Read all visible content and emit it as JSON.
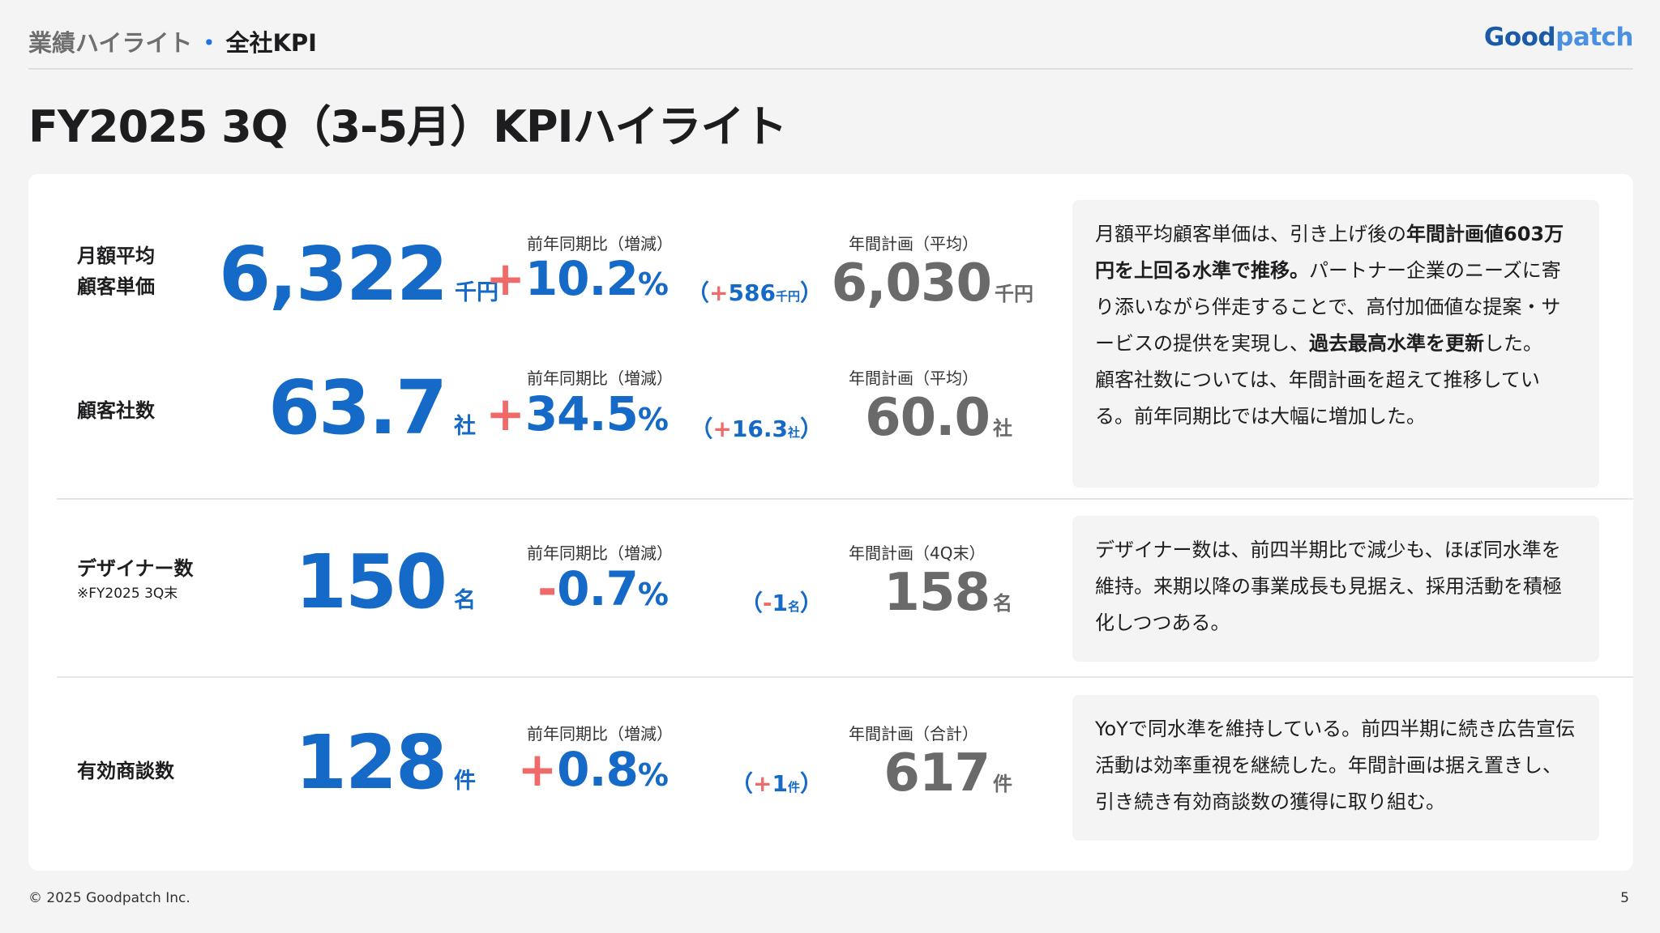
{
  "header": {
    "section": "業績ハイライト",
    "separator": "・",
    "current": "全社KPI",
    "logo_text_a": "Good",
    "logo_text_b": "patch"
  },
  "title": "FY2025 3Q（3-5月）KPIハイライト",
  "kpis": [
    {
      "label_line1": "月額平均",
      "label_line2": "顧客単価",
      "value": "6,322",
      "unit": "千円",
      "yoy_caption": "前年同期比（増減）",
      "yoy_sign": "+",
      "yoy_value": "10.2",
      "yoy_pct": "%",
      "diff_open": "（",
      "diff_sign": "+",
      "diff_value": "586",
      "diff_unit": "千円",
      "diff_close": "）",
      "plan_caption": "年間計画（平均）",
      "plan_value": "6,030",
      "plan_unit": "千円"
    },
    {
      "label_line1": "顧客社数",
      "value": "63.7",
      "unit": "社",
      "yoy_caption": "前年同期比（増減）",
      "yoy_sign": "+",
      "yoy_value": "34.5",
      "yoy_pct": "%",
      "diff_open": "（",
      "diff_sign": "+",
      "diff_value": "16.3",
      "diff_unit": "社",
      "diff_close": "）",
      "plan_caption": "年間計画（平均）",
      "plan_value": "60.0",
      "plan_unit": "社"
    },
    {
      "label_line1": "デザイナー数",
      "sublabel": "※FY2025 3Q末",
      "value": "150",
      "unit": "名",
      "yoy_caption": "前年同期比（増減）",
      "yoy_sign": "-",
      "yoy_value": "0.7",
      "yoy_pct": "%",
      "diff_open": "（",
      "diff_sign": "-",
      "diff_value": "1",
      "diff_unit": "名",
      "diff_close": "）",
      "plan_caption": "年間計画（4Q末）",
      "plan_value": "158",
      "plan_unit": "名"
    },
    {
      "label_line1": "有効商談数",
      "value": "128",
      "unit": "件",
      "yoy_caption": "前年同期比（増減）",
      "yoy_sign": "+",
      "yoy_value": "0.8",
      "yoy_pct": "%",
      "diff_open": "（",
      "diff_sign": "+",
      "diff_value": "1",
      "diff_unit": "件",
      "diff_close": "）",
      "plan_caption": "年間計画（合計）",
      "plan_value": "617",
      "plan_unit": "件"
    }
  ],
  "comments": {
    "c1_a": "月額平均顧客単価は、引き上げ後の",
    "c1_b": "年間計画値603万円を上回る水準で推移。",
    "c1_c": "パートナー企業のニーズに寄り添いながら伴走することで、高付加価値な提案・サービスの提供を実現し、",
    "c1_d": "過去最高水準を更新",
    "c1_e": "した。",
    "c1_f": "顧客社数については、年間計画を超えて推移している。前年同期比では大幅に増加した。",
    "c2": "デザイナー数は、前四半期比で減少も、ほぼ同水準を維持。来期以降の事業成長も見据え、採用活動を積極化しつつある。",
    "c3": "YoYで同水準を維持している。前四半期に続き広告宣伝活動は効率重視を継続した。年間計画は据え置きし、引き続き有効商談数の獲得に取り組む。"
  },
  "footer": {
    "copyright": "© 2025 Goodpatch Inc.",
    "page": "5"
  }
}
